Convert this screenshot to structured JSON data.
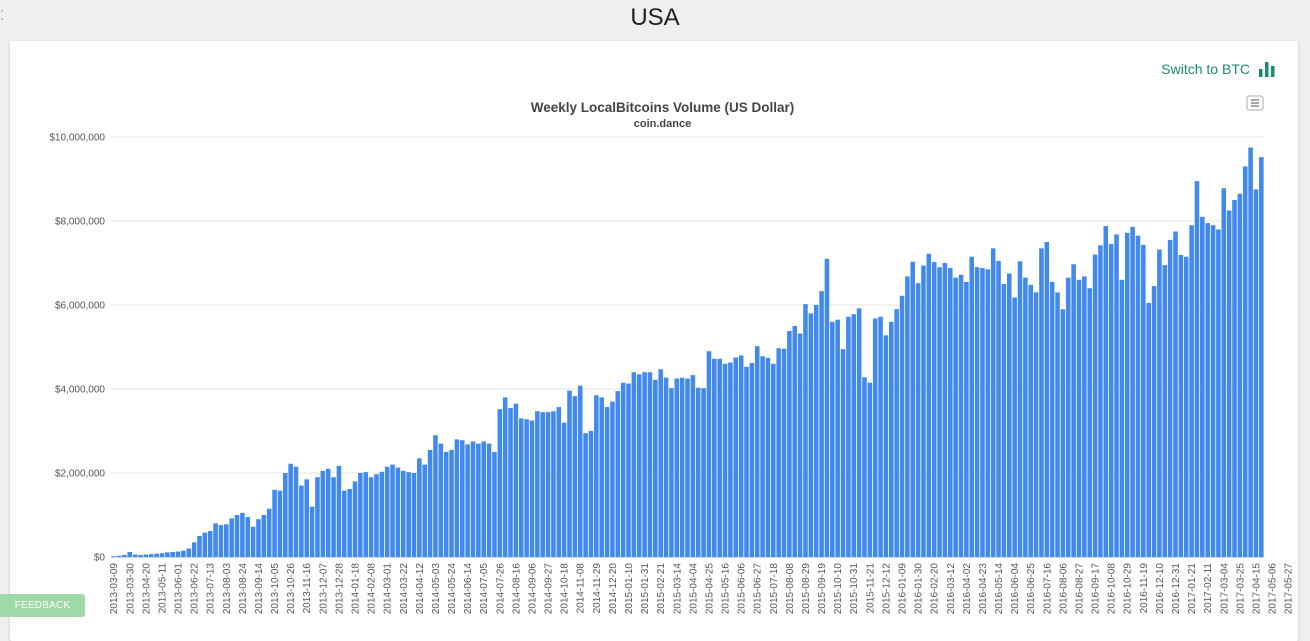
{
  "page": {
    "title": "USA"
  },
  "switch": {
    "label": "Switch to BTC",
    "icon": "bar-chart-icon",
    "color": "#1a8a73"
  },
  "feedback": {
    "label": "FEEDBACK",
    "color": "#9fd9a7"
  },
  "menu": {
    "icon": "menu-icon"
  },
  "chart_data": {
    "type": "bar",
    "title": "Weekly LocalBitcoins Volume (US Dollar)",
    "subtitle": "coin.dance",
    "xlabel": "",
    "ylabel": "",
    "ylim": [
      0,
      10000000
    ],
    "yticks": [
      0,
      2000000,
      4000000,
      6000000,
      8000000,
      10000000
    ],
    "ytick_labels": [
      "$0",
      "$2,000,000",
      "$4,000,000",
      "$6,000,000",
      "$8,000,000",
      "$10,000,000"
    ],
    "grid": true,
    "bar_color": "#4289ec",
    "xtick_labels": [
      "2013-03-09",
      "2013-03-30",
      "2013-04-20",
      "2013-05-11",
      "2013-06-01",
      "2013-06-22",
      "2013-07-13",
      "2013-08-03",
      "2013-08-24",
      "2013-09-14",
      "2013-10-05",
      "2013-10-26",
      "2013-11-16",
      "2013-12-07",
      "2013-12-28",
      "2014-01-18",
      "2014-02-08",
      "2014-03-01",
      "2014-03-22",
      "2014-04-12",
      "2014-05-03",
      "2014-05-24",
      "2014-06-14",
      "2014-07-05",
      "2014-07-26",
      "2014-08-16",
      "2014-09-06",
      "2014-09-27",
      "2014-10-18",
      "2014-11-08",
      "2014-11-29",
      "2014-12-20",
      "2015-01-10",
      "2015-01-31",
      "2015-02-21",
      "2015-03-14",
      "2015-04-04",
      "2015-04-25",
      "2015-05-16",
      "2015-06-06",
      "2015-06-27",
      "2015-07-18",
      "2015-08-08",
      "2015-08-29",
      "2015-09-19",
      "2015-10-10",
      "2015-10-31",
      "2015-11-21",
      "2015-12-12",
      "2016-01-09",
      "2016-01-30",
      "2016-02-20",
      "2016-03-12",
      "2016-04-02",
      "2016-04-23",
      "2016-05-14",
      "2016-06-04",
      "2016-06-25",
      "2016-07-16",
      "2016-08-06",
      "2016-08-27",
      "2016-09-17",
      "2016-10-08",
      "2016-10-29",
      "2016-11-19",
      "2016-12-10",
      "2016-12-31",
      "2017-01-21",
      "2017-02-11",
      "2017-03-04",
      "2017-03-25",
      "2017-04-15",
      "2017-05-06",
      "2017-05-27"
    ],
    "values": [
      20000,
      30000,
      50000,
      120000,
      60000,
      50000,
      60000,
      70000,
      80000,
      90000,
      110000,
      120000,
      130000,
      150000,
      200000,
      350000,
      500000,
      580000,
      620000,
      800000,
      760000,
      780000,
      920000,
      1000000,
      1050000,
      950000,
      720000,
      900000,
      1000000,
      1150000,
      1600000,
      1580000,
      2000000,
      2220000,
      2150000,
      1700000,
      1850000,
      1200000,
      1900000,
      2050000,
      2100000,
      1900000,
      2170000,
      1580000,
      1620000,
      1800000,
      2000000,
      2020000,
      1900000,
      1970000,
      2030000,
      2150000,
      2200000,
      2130000,
      2050000,
      2020000,
      2000000,
      2350000,
      2200000,
      2550000,
      2900000,
      2700000,
      2500000,
      2550000,
      2800000,
      2780000,
      2680000,
      2750000,
      2700000,
      2750000,
      2700000,
      2500000,
      3520000,
      3800000,
      3550000,
      3650000,
      3300000,
      3280000,
      3250000,
      3470000,
      3450000,
      3450000,
      3470000,
      3570000,
      3200000,
      3960000,
      3830000,
      4080000,
      2950000,
      3000000,
      3850000,
      3800000,
      3570000,
      3700000,
      3950000,
      4150000,
      4130000,
      4400000,
      4350000,
      4400000,
      4400000,
      4220000,
      4470000,
      4270000,
      4020000,
      4250000,
      4270000,
      4250000,
      4330000,
      4030000,
      4020000,
      4900000,
      4720000,
      4720000,
      4600000,
      4630000,
      4750000,
      4800000,
      4530000,
      4620000,
      5020000,
      4780000,
      4740000,
      4600000,
      4970000,
      4960000,
      5380000,
      5500000,
      5320000,
      6020000,
      5800000,
      6000000,
      6330000,
      7100000,
      5600000,
      5650000,
      4950000,
      5720000,
      5780000,
      5920000,
      4280000,
      4150000,
      5680000,
      5720000,
      5280000,
      5600000,
      5900000,
      6220000,
      6680000,
      7030000,
      6520000,
      6940000,
      7220000,
      7020000,
      6900000,
      7000000,
      6880000,
      6650000,
      6720000,
      6550000,
      7150000,
      6900000,
      6880000,
      6850000,
      7350000,
      7050000,
      6500000,
      6750000,
      6180000,
      7040000,
      6650000,
      6480000,
      6300000,
      7350000,
      7500000,
      6550000,
      6300000,
      5900000,
      6650000,
      6970000,
      6600000,
      6680000,
      6400000,
      7200000,
      7420000,
      7880000,
      7450000,
      7680000,
      6600000,
      7720000,
      7860000,
      7650000,
      7430000,
      6050000,
      6450000,
      7320000,
      6950000,
      7550000,
      7750000,
      7190000,
      7150000,
      7900000,
      8950000,
      8100000,
      7950000,
      7900000,
      7800000,
      8780000,
      8250000,
      8500000,
      8650000,
      9300000,
      9750000,
      8750000,
      9520000
    ]
  }
}
